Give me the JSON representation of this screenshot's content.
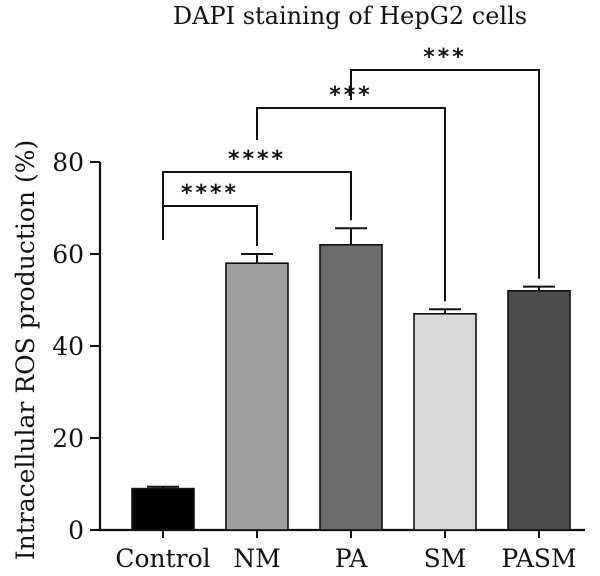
{
  "chart_data": {
    "type": "bar",
    "title": "DAPI staining of HepG2 cells",
    "xlabel": "",
    "ylabel": "Intracellular ROS production (%)",
    "ylim": [
      0,
      80
    ],
    "yticks": [
      0,
      20,
      40,
      60,
      80
    ],
    "grid": false,
    "categories": [
      "Control",
      "NM",
      "PA",
      "SM",
      "PASM"
    ],
    "values": [
      9,
      58,
      62,
      47,
      52
    ],
    "errors": [
      0.4,
      2,
      3.6,
      1,
      0.9
    ],
    "colors": [
      "#000000",
      "#9e9e9e",
      "#6b6b6b",
      "#d9d9d9",
      "#4d4d4d"
    ],
    "significance": [
      {
        "from": "Control",
        "to": "NM",
        "label": "****"
      },
      {
        "from": "Control",
        "to": "PA",
        "label": "****"
      },
      {
        "from": "NM",
        "to": "SM",
        "label": "***"
      },
      {
        "from": "PA",
        "to": "PASM",
        "label": "***"
      }
    ]
  }
}
